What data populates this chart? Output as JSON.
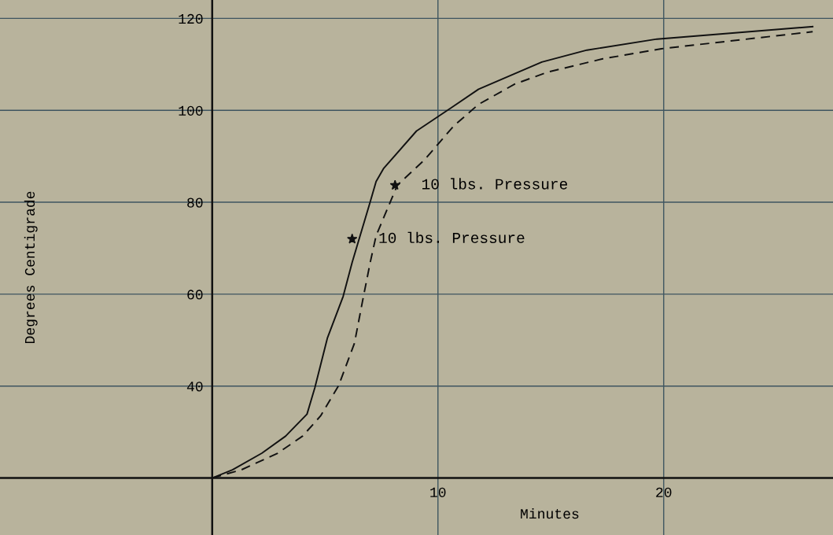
{
  "chart_data": {
    "type": "line",
    "xlabel": "Minutes",
    "ylabel": "Degrees Centigrade",
    "xlim": [
      -9.4,
      27.5
    ],
    "ylim": [
      7.6,
      124
    ],
    "xticks": [
      10,
      20
    ],
    "yticks": [
      40,
      60,
      80,
      100,
      120
    ],
    "grid": true,
    "marker": "none",
    "series": [
      {
        "color": "#111111",
        "line_style": "solid",
        "x": [
          0,
          0.9,
          2.2,
          3.25,
          4.2,
          4.55,
          5.1,
          5.8,
          6.2,
          7.0,
          7.26,
          7.6,
          9.05,
          10.6,
          11.8,
          14.6,
          16.6,
          19.7,
          26.6
        ],
        "values": [
          20,
          21.8,
          25.4,
          29.1,
          33.9,
          39.7,
          50.4,
          59.5,
          66.9,
          80.1,
          84.5,
          87.4,
          95.5,
          100.6,
          104.6,
          110.5,
          113.1,
          115.5,
          118.2
        ]
      },
      {
        "color": "#111111",
        "line_style": "dashed",
        "x": [
          0,
          1.3,
          2.9,
          4.0,
          4.8,
          5.6,
          6.3,
          6.7,
          7.0,
          7.26,
          8.2,
          9.4,
          10.7,
          11.8,
          13.4,
          14.85,
          17.3,
          19.9,
          26.6
        ],
        "values": [
          20,
          21.8,
          25.4,
          29.1,
          33.5,
          40.1,
          49.3,
          59.5,
          66.9,
          72.7,
          83.7,
          89.2,
          96.6,
          101.3,
          105.7,
          108.3,
          111.2,
          113.4,
          117.1
        ]
      }
    ],
    "annotations": [
      {
        "text": "10 lbs. Pressure",
        "x": 8.1,
        "y": 83.7
      },
      {
        "text": "10 lbs. Pressure",
        "x": 6.2,
        "y": 72.0
      }
    ]
  }
}
